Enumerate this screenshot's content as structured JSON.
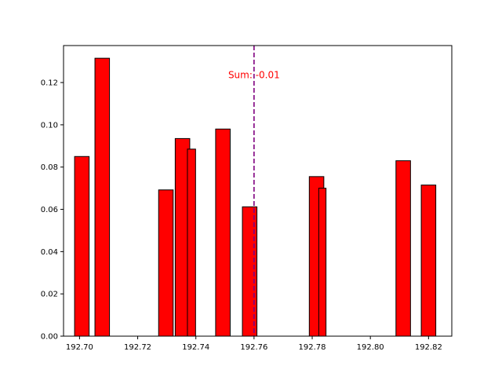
{
  "chart_data": {
    "type": "bar",
    "title": "",
    "xlabel": "",
    "ylabel": "",
    "xlim": [
      192.6945,
      192.828
    ],
    "ylim": [
      0,
      0.1375
    ],
    "x_ticks": [
      192.7,
      192.72,
      192.74,
      192.76,
      192.78,
      192.8,
      192.82
    ],
    "x_tick_labels": [
      "192.70",
      "192.72",
      "192.74",
      "192.76",
      "192.78",
      "192.80",
      "192.82"
    ],
    "y_ticks": [
      0,
      0.02,
      0.04,
      0.06,
      0.08,
      0.1,
      0.12
    ],
    "y_tick_labels": [
      "0.00",
      "0.02",
      "0.04",
      "0.06",
      "0.08",
      "0.10",
      "0.12"
    ],
    "bar_color": "#ff0000",
    "bar_edge_color": "#000000",
    "bars": [
      {
        "x": 192.7008,
        "width": 0.005,
        "value": 0.085
      },
      {
        "x": 192.7078,
        "width": 0.005,
        "value": 0.1315
      },
      {
        "x": 192.7297,
        "width": 0.005,
        "value": 0.0692
      },
      {
        "x": 192.7354,
        "width": 0.005,
        "value": 0.0935
      },
      {
        "x": 192.7384,
        "width": 0.0025,
        "value": 0.0728
      },
      {
        "x": 192.7385,
        "width": 0.0028,
        "value": 0.0885
      },
      {
        "x": 192.7493,
        "width": 0.005,
        "value": 0.098
      },
      {
        "x": 192.7585,
        "width": 0.005,
        "value": 0.0612
      },
      {
        "x": 192.7815,
        "width": 0.005,
        "value": 0.0755
      },
      {
        "x": 192.7835,
        "width": 0.0025,
        "value": 0.07
      },
      {
        "x": 192.8113,
        "width": 0.005,
        "value": 0.083
      },
      {
        "x": 192.82,
        "width": 0.005,
        "value": 0.0715
      }
    ],
    "vline": {
      "x": 192.76,
      "color": "#800080",
      "style": "dashed"
    },
    "annotation": {
      "text": "Sum: -0.01",
      "x": 192.76,
      "y": 0.124,
      "color": "#ff0000"
    },
    "grid": false,
    "legend": "none"
  }
}
